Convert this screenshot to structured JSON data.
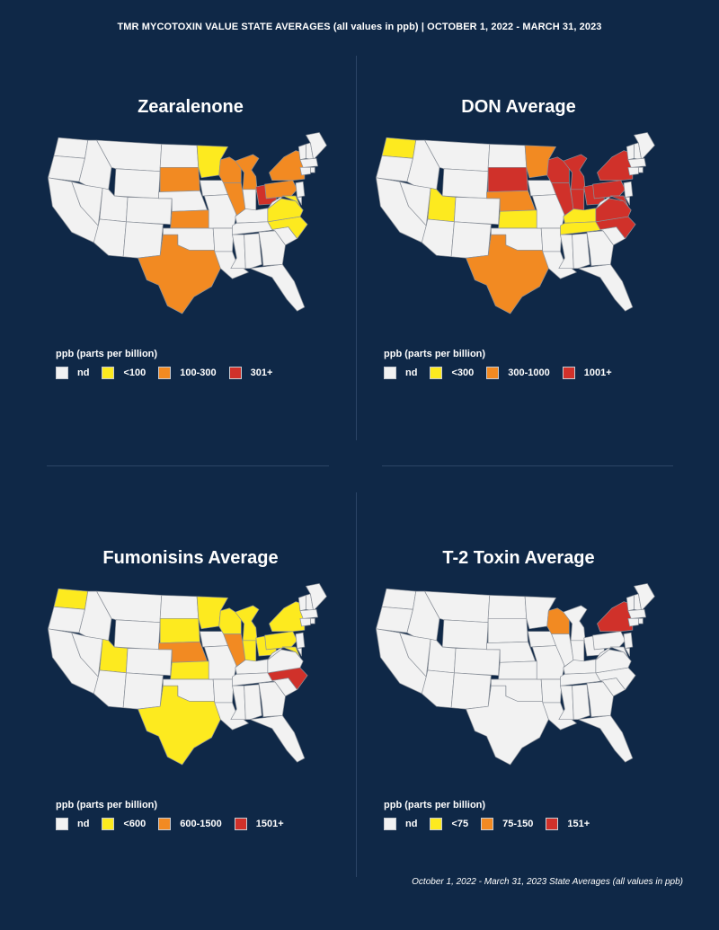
{
  "header": {
    "title": "TMR MYCOTOXIN VALUE STATE AVERAGES (all values in ppb) | OCTOBER 1, 2022 - MARCH 31, 2023"
  },
  "colors": {
    "nd": "#f2f2f2",
    "low": "#fdea1f",
    "mid": "#f28a22",
    "high": "#d0312a",
    "background": "#0f2847",
    "border": "#8a9099"
  },
  "panels": [
    {
      "title": "Zearalenone",
      "legend": {
        "title": "ppb (parts per billion)",
        "items": [
          {
            "label": "nd",
            "level": "nd"
          },
          {
            "label": "<100",
            "level": "low"
          },
          {
            "label": "100-300",
            "level": "mid"
          },
          {
            "label": "301+",
            "level": "high"
          }
        ]
      },
      "states": {
        "MN": "low",
        "SD": "mid",
        "KS": "mid",
        "TX": "mid",
        "WI": "mid",
        "IL": "mid",
        "MI": "mid",
        "OH": "high",
        "PA": "mid",
        "NY": "mid",
        "MD": "low",
        "VA": "low",
        "NC": "low"
      }
    },
    {
      "title": "DON Average",
      "legend": {
        "title": "ppb (parts per billion)",
        "items": [
          {
            "label": "nd",
            "level": "nd"
          },
          {
            "label": "<300",
            "level": "low"
          },
          {
            "label": "300-1000",
            "level": "mid"
          },
          {
            "label": "1001+",
            "level": "high"
          }
        ]
      },
      "states": {
        "WA": "low",
        "UT": "low",
        "SD": "high",
        "NE": "mid",
        "KS": "low",
        "TX": "mid",
        "MN": "mid",
        "WI": "high",
        "IL": "high",
        "MI": "high",
        "IN": "high",
        "OH": "high",
        "PA": "high",
        "NY": "high",
        "MD": "high",
        "VA": "high",
        "NC": "high",
        "KY": "low",
        "TN": "low"
      }
    },
    {
      "title": "Fumonisins Average",
      "legend": {
        "title": "ppb (parts per billion)",
        "items": [
          {
            "label": "nd",
            "level": "nd"
          },
          {
            "label": "<600",
            "level": "low"
          },
          {
            "label": "600-1500",
            "level": "mid"
          },
          {
            "label": "1501+",
            "level": "high"
          }
        ]
      },
      "states": {
        "WA": "low",
        "UT": "low",
        "SD": "low",
        "NE": "mid",
        "KS": "low",
        "TX": "low",
        "MN": "low",
        "WI": "low",
        "IL": "mid",
        "MI": "low",
        "IN": "low",
        "OH": "low",
        "PA": "low",
        "NY": "low",
        "MD": "low",
        "NC": "high"
      }
    },
    {
      "title": "T-2 Toxin Average",
      "legend": {
        "title": "ppb (parts per billion)",
        "items": [
          {
            "label": "nd",
            "level": "nd"
          },
          {
            "label": "<75",
            "level": "low"
          },
          {
            "label": "75-150",
            "level": "mid"
          },
          {
            "label": "151+",
            "level": "high"
          }
        ]
      },
      "states": {
        "WI": "mid",
        "NY": "high"
      }
    }
  ],
  "footnote": "October 1, 2022 - March 31, 2023 State Averages (all values in ppb)"
}
